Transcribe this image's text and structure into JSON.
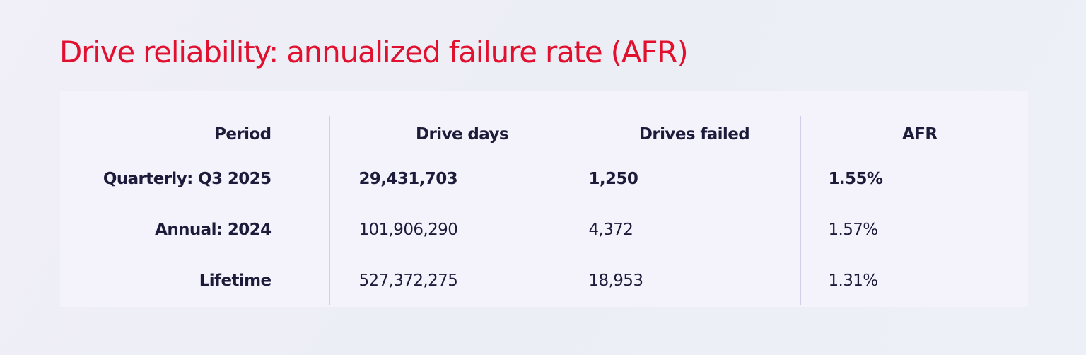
{
  "title": "Drive reliability: annualized failure rate (AFR)",
  "table": {
    "columns": [
      "Period",
      "Drive days",
      "Drives failed",
      "AFR"
    ],
    "rows": [
      {
        "period": "Quarterly: Q3 2025",
        "drive_days": "29,431,703",
        "drives_failed": "1,250",
        "afr": "1.55%"
      },
      {
        "period": "Annual: 2024",
        "drive_days": "101,906,290",
        "drives_failed": "4,372",
        "afr": "1.57%"
      },
      {
        "period": "Lifetime",
        "drive_days": "527,372,275",
        "drives_failed": "18,953",
        "afr": "1.31%"
      }
    ]
  },
  "colors": {
    "title": "#e0102e",
    "text": "#1c1b3a",
    "header_rule": "#3a3a95",
    "card_background": "#f4f3fc"
  }
}
